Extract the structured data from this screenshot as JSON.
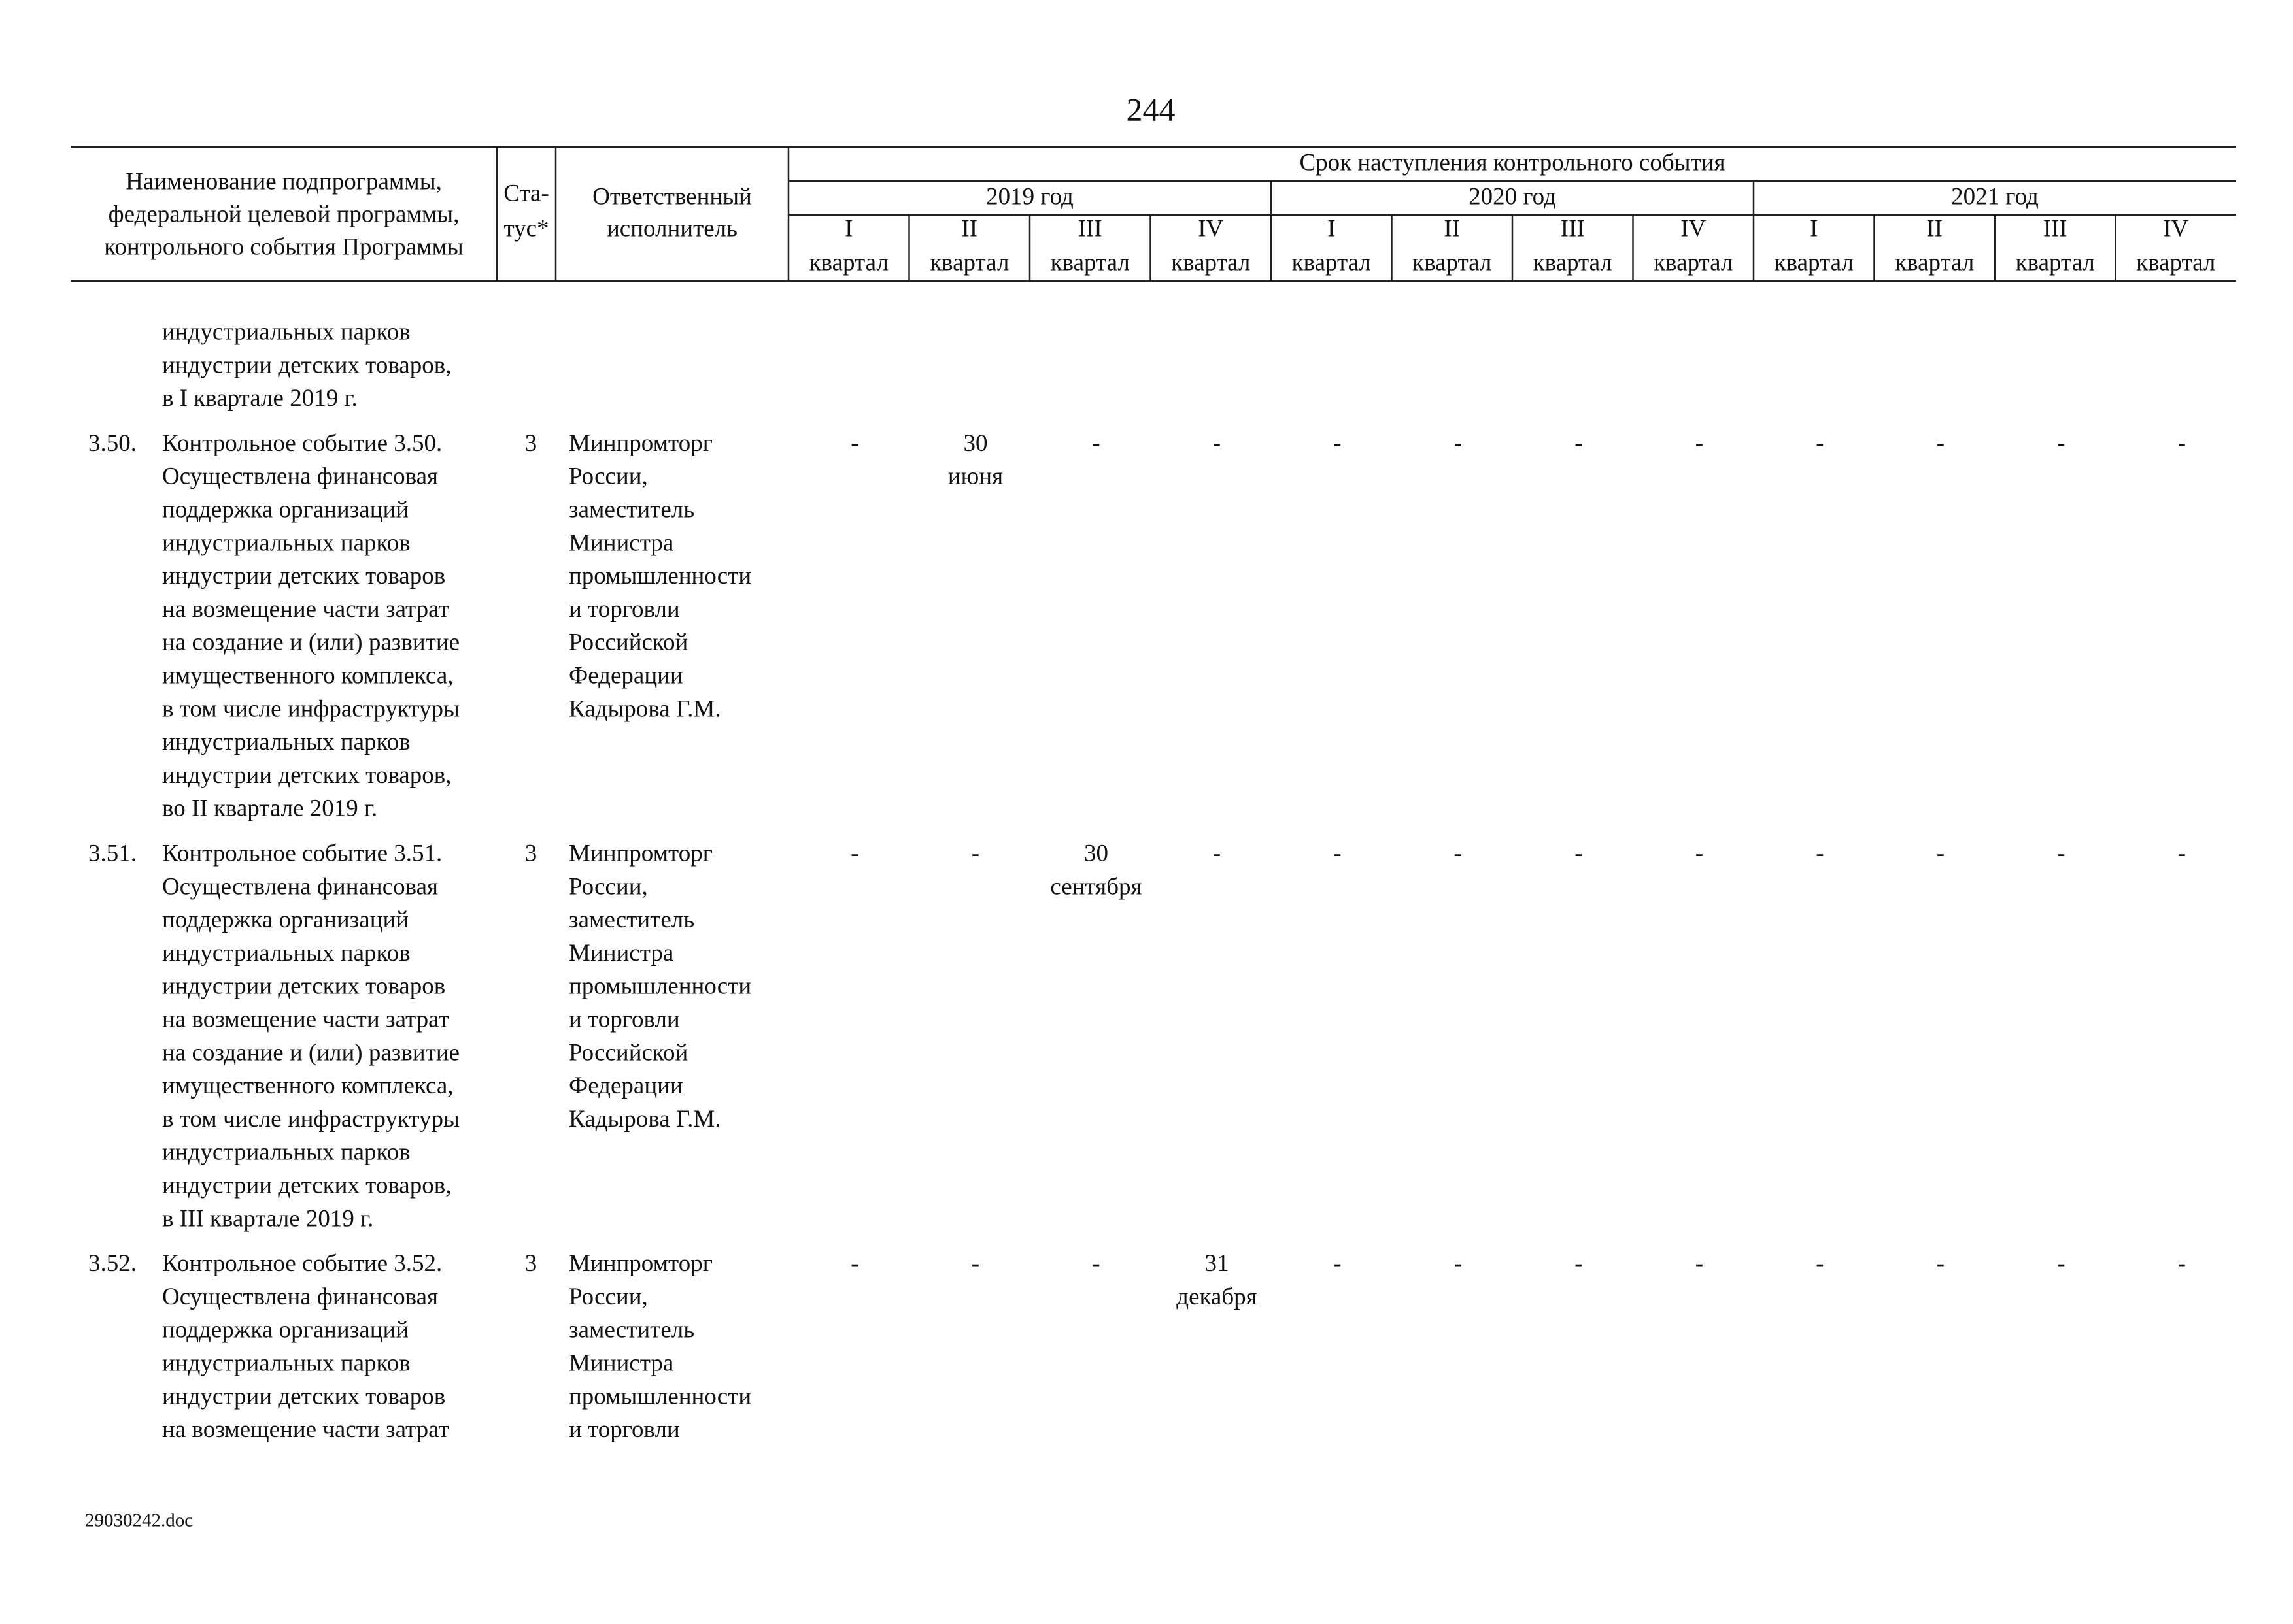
{
  "page_number": "244",
  "header": {
    "name": [
      "Наименование подпрограммы,",
      "федеральной целевой программы,",
      "контрольного события Программы"
    ],
    "status": [
      "Ста-",
      "тус*"
    ],
    "responsible": [
      "Ответственный",
      "исполнитель"
    ],
    "deadline": "Срок наступления контрольного события",
    "years": [
      "2019 год",
      "2020 год",
      "2021 год"
    ],
    "quarters": [
      [
        "I",
        "квартал"
      ],
      [
        "II",
        "квартал"
      ],
      [
        "III",
        "квартал"
      ],
      [
        "IV",
        "квартал"
      ],
      [
        "I",
        "квартал"
      ],
      [
        "II",
        "квартал"
      ],
      [
        "III",
        "квартал"
      ],
      [
        "IV",
        "квартал"
      ],
      [
        "I",
        "квартал"
      ],
      [
        "II",
        "квартал"
      ],
      [
        "III",
        "квартал"
      ],
      [
        "IV",
        "квартал"
      ]
    ]
  },
  "rows": [
    {
      "name": [
        "индустриальных парков",
        "индустрии детских товаров,",
        "в I квартале 2019 г."
      ]
    },
    {
      "number": "3.50.",
      "name": [
        "Контрольное событие 3.50.",
        "Осуществлена финансовая",
        "поддержка организаций",
        "индустриальных парков",
        "индустрии детских товаров",
        "на возмещение части затрат",
        "на создание и (или) развитие",
        "имущественного комплекса,",
        "в том числе инфраструктуры",
        "индустриальных парков",
        "индустрии детских товаров,",
        "во II квартале 2019 г."
      ],
      "status": "3",
      "responsible": [
        "Минпромторг",
        "России,",
        "заместитель",
        "Министра",
        "промышленности",
        "и торговли",
        "Российской",
        "Федерации",
        "Кадырова Г.М."
      ],
      "cells": [
        [
          "-"
        ],
        [
          "30",
          "июня"
        ],
        [
          "-"
        ],
        [
          "-"
        ],
        [
          "-"
        ],
        [
          "-"
        ],
        [
          "-"
        ],
        [
          "-"
        ],
        [
          "-"
        ],
        [
          "-"
        ],
        [
          "-"
        ],
        [
          "-"
        ]
      ]
    },
    {
      "number": "3.51.",
      "name": [
        "Контрольное событие 3.51.",
        "Осуществлена финансовая",
        "поддержка организаций",
        "индустриальных парков",
        "индустрии детских товаров",
        "на возмещение части затрат",
        "на создание и (или) развитие",
        "имущественного комплекса,",
        "в том числе инфраструктуры",
        "индустриальных парков",
        "индустрии детских товаров,",
        "в III квартале 2019 г."
      ],
      "status": "3",
      "responsible": [
        "Минпромторг",
        "России,",
        "заместитель",
        "Министра",
        "промышленности",
        "и торговли",
        "Российской",
        "Федерации",
        "Кадырова Г.М."
      ],
      "cells": [
        [
          "-"
        ],
        [
          "-"
        ],
        [
          "30",
          "сентября"
        ],
        [
          "-"
        ],
        [
          "-"
        ],
        [
          "-"
        ],
        [
          "-"
        ],
        [
          "-"
        ],
        [
          "-"
        ],
        [
          "-"
        ],
        [
          "-"
        ],
        [
          "-"
        ]
      ]
    },
    {
      "number": "3.52.",
      "name": [
        "Контрольное событие 3.52.",
        "Осуществлена финансовая",
        "поддержка организаций",
        "индустриальных парков",
        "индустрии детских товаров",
        "на возмещение части затрат"
      ],
      "status": "3",
      "responsible": [
        "Минпромторг",
        "России,",
        "заместитель",
        "Министра",
        "промышленности",
        "и торговли"
      ],
      "cells": [
        [
          "-"
        ],
        [
          "-"
        ],
        [
          "-"
        ],
        [
          "31",
          "декабря"
        ],
        [
          "-"
        ],
        [
          "-"
        ],
        [
          "-"
        ],
        [
          "-"
        ],
        [
          "-"
        ],
        [
          "-"
        ],
        [
          "-"
        ],
        [
          "-"
        ]
      ]
    }
  ],
  "footer": "29030242.doc"
}
